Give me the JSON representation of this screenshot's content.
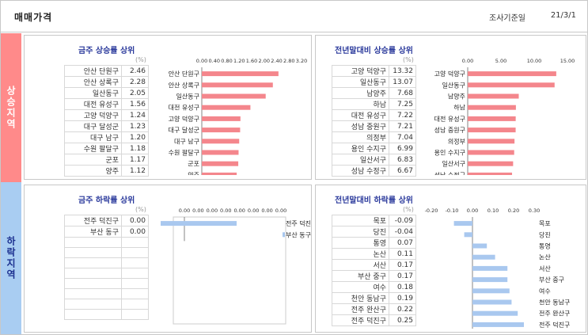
{
  "header": {
    "title": "매매가격",
    "date_label": "조사기준일",
    "date_value": "21/3/1"
  },
  "sections": {
    "rise_label": "상승지역",
    "fall_label": "하락지역"
  },
  "chart_data": [
    {
      "type": "bar",
      "orientation": "horizontal",
      "title": "금주 상승률 상위",
      "unit": "(%)",
      "categories": [
        "안산 단원구",
        "안산 상록구",
        "일산동구",
        "대전 유성구",
        "고양 덕양구",
        "대구 달성군",
        "대구 남구",
        "수원 팔달구",
        "군포",
        "양주"
      ],
      "values": [
        2.46,
        2.28,
        2.05,
        1.56,
        1.24,
        1.23,
        1.2,
        1.18,
        1.17,
        1.12
      ],
      "xlim": [
        0,
        3.2
      ],
      "ticks": [
        "0.00",
        "0.40",
        "0.80",
        "1.20",
        "1.60",
        "2.00",
        "2.40",
        "2.80",
        "3.20"
      ],
      "color": "#f4868c"
    },
    {
      "type": "bar",
      "orientation": "horizontal",
      "title": "전년말대비 상승률 상위",
      "unit": "(%)",
      "categories": [
        "고양 덕양구",
        "일산동구",
        "남양주",
        "하남",
        "대전 유성구",
        "성남 중원구",
        "의정부",
        "용인 수지구",
        "일산서구",
        "성남 수정구"
      ],
      "values": [
        13.32,
        13.07,
        7.68,
        7.25,
        7.22,
        7.21,
        7.04,
        6.99,
        6.83,
        6.67
      ],
      "xlim": [
        0,
        15
      ],
      "ticks": [
        "0.00",
        "5.00",
        "10.00",
        "15.00"
      ],
      "color": "#f4868c"
    },
    {
      "type": "bar",
      "orientation": "horizontal",
      "title": "금주 하락률 상위",
      "unit": "(%)",
      "categories": [
        "전주 덕진구",
        "부산 동구"
      ],
      "values": [
        0.0,
        0.0
      ],
      "xlim": [
        0,
        1
      ],
      "ticks": [
        "0.00",
        "0.00",
        "0.00",
        "0.00",
        "0.00",
        "0.00",
        "0.00",
        "0.00"
      ],
      "empty_rows": 8,
      "color": "#a9c8ef"
    },
    {
      "type": "bar",
      "orientation": "horizontal",
      "title": "전년말대비 하락률 상위",
      "unit": "(%)",
      "categories": [
        "목포",
        "당진",
        "통영",
        "논산",
        "서산",
        "부산 중구",
        "여수",
        "천안 동남구",
        "전주 완산구",
        "전주 덕진구"
      ],
      "values": [
        -0.09,
        -0.04,
        0.07,
        0.11,
        0.17,
        0.17,
        0.18,
        0.19,
        0.22,
        0.25
      ],
      "xlim": [
        -0.2,
        0.3
      ],
      "ticks": [
        "-0.20",
        "-0.10",
        "0.00",
        "0.10",
        "0.20",
        "0.30"
      ],
      "color": "#a9c8ef"
    }
  ]
}
